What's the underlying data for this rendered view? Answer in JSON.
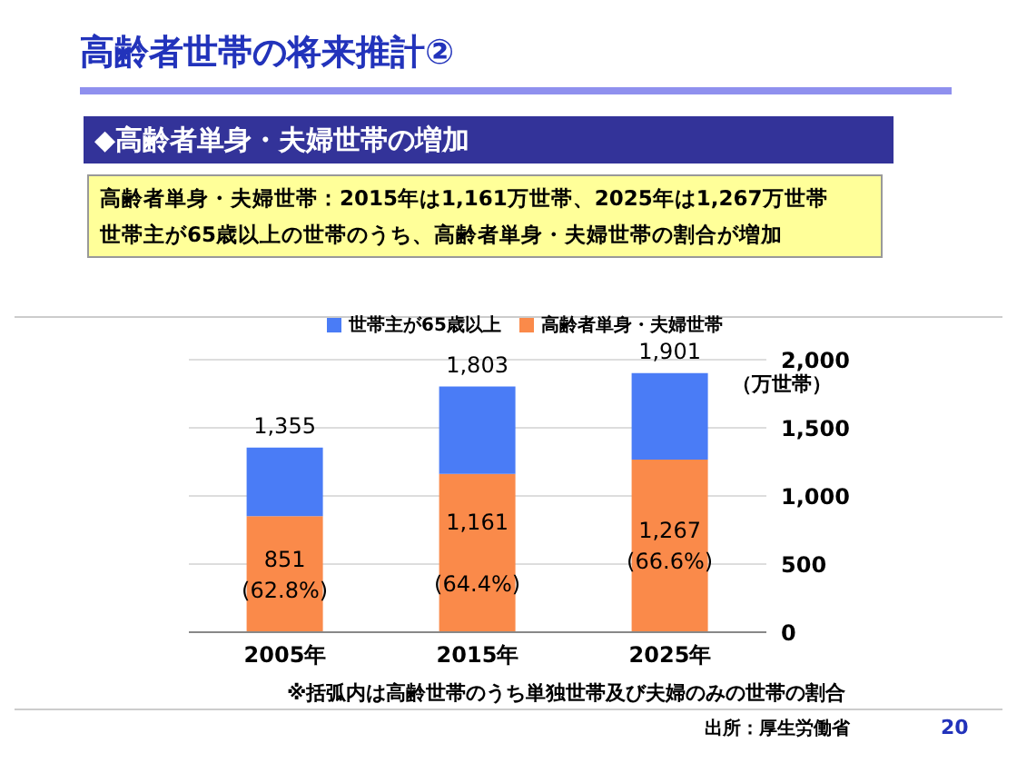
{
  "chart_data": {
    "type": "bar",
    "title": "高齢者世帯の将来推計②",
    "subtitle": "◆高齢者単身・夫婦世帯の増加",
    "ylabel": "（万世帯）",
    "categories": [
      "2005年",
      "2015年",
      "2025年"
    ],
    "stacked": true,
    "series": [
      {
        "name": "高齢者単身・夫婦世帯",
        "color": "#fa8a4a",
        "values": [
          851,
          1161,
          1267
        ],
        "value_labels": [
          "851\n(62.8%)",
          "1,161\n\n(64.4%)",
          "1,267\n(66.6%)"
        ]
      },
      {
        "name": "世帯主が65歳以上",
        "color": "#4a7cf6",
        "values": [
          504,
          642,
          634
        ]
      }
    ],
    "totals": [
      "1,355",
      "1,803",
      "1,901"
    ],
    "ylim": [
      0,
      2000
    ],
    "yticks": [
      0,
      {
        "value": 500,
        "label": "500"
      },
      {
        "value": 1000,
        "label": "1,000"
      },
      {
        "value": 1500,
        "label": "1,500"
      },
      {
        "value": 2000,
        "label": "2,000"
      }
    ],
    "grid": "y",
    "legend": "top",
    "annotations": [
      "高齢者単身・夫婦世帯：2015年は1,161万世帯、2025年は1,267万世帯",
      "世帯主が65歳以上の世帯のうち、高齢者単身・夫婦世帯の割合が増加",
      "※括弧内は高齢世帯のうち単独世帯及び夫婦のみの世帯の割合",
      "出所：厚生労働省",
      "20"
    ]
  }
}
